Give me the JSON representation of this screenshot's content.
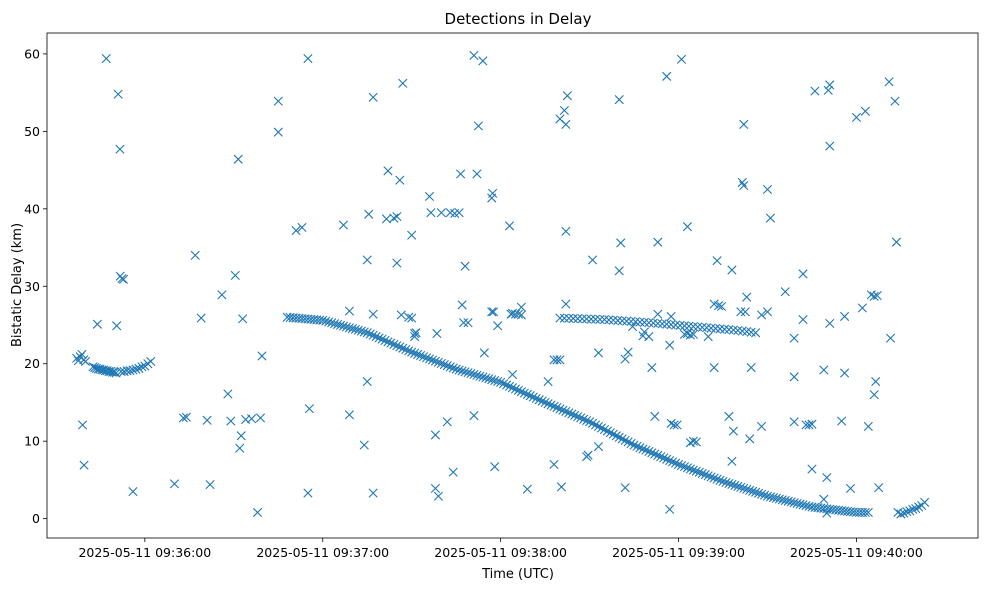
{
  "chart_data": {
    "type": "scatter",
    "title": "Detections in Delay",
    "xlabel": "Time (UTC)",
    "ylabel": "Bistatic Delay (km)",
    "marker": "x",
    "color": "#1f77b4",
    "x_unit": "seconds after 2025-05-11 09:35:00",
    "xlim": [
      27,
      341
    ],
    "ylim": [
      -2.5,
      62.7
    ],
    "xticks": [
      {
        "value": 60,
        "label": "2025-05-11 09:36:00"
      },
      {
        "value": 120,
        "label": "2025-05-11 09:37:00"
      },
      {
        "value": 180,
        "label": "2025-05-11 09:38:00"
      },
      {
        "value": 240,
        "label": "2025-05-11 09:39:00"
      },
      {
        "value": 300,
        "label": "2025-05-11 09:40:00"
      }
    ],
    "yticks": [
      0,
      10,
      20,
      30,
      40,
      50,
      60
    ],
    "track_a_early": {
      "description": "cluster near 19-21 km at start",
      "x": [
        37.0,
        37.6,
        38.2,
        38.8,
        39.4,
        40.0,
        42.5,
        43.1,
        43.7,
        44.3,
        44.9,
        45.5,
        46.1,
        46.7,
        47.3,
        47.9,
        48.5,
        49.1,
        49.7,
        50.3,
        52.0,
        53.0,
        54.0,
        55.0,
        56.0,
        57.0,
        58.0,
        59.0,
        60.0,
        61.0,
        62.0
      ],
      "y": [
        20.7,
        20.4,
        20.9,
        21.2,
        20.5,
        20.3,
        19.6,
        19.5,
        19.4,
        19.3,
        19.3,
        19.2,
        19.2,
        19.1,
        19.1,
        19.0,
        19.0,
        18.9,
        18.9,
        18.8,
        19.0,
        19.0,
        19.1,
        19.1,
        19.2,
        19.3,
        19.4,
        19.6,
        19.7,
        20.0,
        20.3
      ]
    },
    "track_b": {
      "description": "main descending track from ~26 km at 09:36:48 to ~1 km at 09:40:05",
      "x_start": 108,
      "x_step": 1.0,
      "count": 197,
      "y_anchors": [
        [
          108,
          26.0
        ],
        [
          120,
          25.6
        ],
        [
          135,
          24.0
        ],
        [
          150,
          21.5
        ],
        [
          165,
          19.3
        ],
        [
          180,
          17.6
        ],
        [
          195,
          15.0
        ],
        [
          210,
          12.5
        ],
        [
          225,
          9.5
        ],
        [
          240,
          7.0
        ],
        [
          255,
          4.8
        ],
        [
          270,
          2.9
        ],
        [
          285,
          1.5
        ],
        [
          300,
          0.8
        ],
        [
          305,
          0.8
        ]
      ]
    },
    "track_c": {
      "description": "secondary track near 25-26 km",
      "x_start": 200,
      "x_step": 1.5,
      "count": 45,
      "y_anchors": [
        [
          200,
          25.9
        ],
        [
          215,
          25.7
        ],
        [
          230,
          25.3
        ],
        [
          245,
          24.8
        ],
        [
          260,
          24.3
        ],
        [
          266,
          24.0
        ]
      ]
    },
    "track_d_tail": {
      "description": "short cluster at end",
      "x": [
        314,
        315,
        316,
        317,
        318,
        319,
        320,
        321,
        322,
        323
      ],
      "y": [
        0.8,
        0.6,
        0.7,
        0.9,
        1.0,
        1.2,
        1.3,
        1.5,
        1.7,
        2.1
      ]
    },
    "scatter": {
      "description": "isolated detections",
      "points": [
        [
          39,
          12.1
        ],
        [
          39.5,
          6.9
        ],
        [
          47,
          59.4
        ],
        [
          51,
          54.8
        ],
        [
          51.6,
          47.7
        ],
        [
          51.7,
          31.3
        ],
        [
          52.3,
          31.0
        ],
        [
          52.8,
          30.9
        ],
        [
          50.5,
          24.9
        ],
        [
          44,
          25.1
        ],
        [
          56,
          3.5
        ],
        [
          70,
          4.5
        ],
        [
          73,
          13.0
        ],
        [
          74,
          13.1
        ],
        [
          77,
          34.0
        ],
        [
          79,
          25.9
        ],
        [
          81,
          12.7
        ],
        [
          82,
          4.4
        ],
        [
          86,
          28.9
        ],
        [
          88,
          16.1
        ],
        [
          89,
          12.6
        ],
        [
          90.5,
          31.4
        ],
        [
          91.5,
          46.4
        ],
        [
          92,
          9.1
        ],
        [
          92.5,
          10.7
        ],
        [
          93,
          25.8
        ],
        [
          94,
          12.8
        ],
        [
          96,
          12.9
        ],
        [
          98,
          0.8
        ],
        [
          99,
          13.0
        ],
        [
          99.5,
          21.0
        ],
        [
          105,
          53.9
        ],
        [
          105,
          49.9
        ],
        [
          111,
          37.2
        ],
        [
          113,
          37.6
        ],
        [
          115,
          59.4
        ],
        [
          115,
          3.3
        ],
        [
          115.5,
          14.2
        ],
        [
          127,
          37.9
        ],
        [
          129,
          26.8
        ],
        [
          129,
          13.4
        ],
        [
          134,
          9.5
        ],
        [
          135,
          33.4
        ],
        [
          135,
          17.7
        ],
        [
          135.5,
          39.3
        ],
        [
          137,
          54.4
        ],
        [
          137,
          26.4
        ],
        [
          137,
          3.3
        ],
        [
          142,
          44.9
        ],
        [
          141.5,
          38.7
        ],
        [
          144,
          38.8
        ],
        [
          145,
          33.0
        ],
        [
          145,
          39.0
        ],
        [
          146,
          43.7
        ],
        [
          146.5,
          26.3
        ],
        [
          147,
          56.2
        ],
        [
          149,
          26.0
        ],
        [
          150,
          36.6
        ],
        [
          150,
          25.9
        ],
        [
          151,
          23.9
        ],
        [
          151,
          23.5
        ],
        [
          151.5,
          24.0
        ],
        [
          156,
          41.6
        ],
        [
          156.5,
          39.5
        ],
        [
          158,
          10.8
        ],
        [
          158,
          3.9
        ],
        [
          158.5,
          23.9
        ],
        [
          159,
          2.9
        ],
        [
          160,
          39.5
        ],
        [
          162,
          12.5
        ],
        [
          163,
          39.5
        ],
        [
          164,
          6.0
        ],
        [
          164.5,
          39.4
        ],
        [
          166,
          39.5
        ],
        [
          166.5,
          44.5
        ],
        [
          167,
          27.6
        ],
        [
          167.5,
          25.3
        ],
        [
          168,
          32.6
        ],
        [
          169,
          25.3
        ],
        [
          171,
          59.8
        ],
        [
          171,
          13.3
        ],
        [
          172,
          44.5
        ],
        [
          172.5,
          50.7
        ],
        [
          174,
          59.1
        ],
        [
          174.5,
          21.4
        ],
        [
          177,
          26.7
        ],
        [
          177,
          41.4
        ],
        [
          177.3,
          42.0
        ],
        [
          177.6,
          26.7
        ],
        [
          178,
          6.7
        ],
        [
          179,
          24.9
        ],
        [
          183,
          37.8
        ],
        [
          183.5,
          26.4
        ],
        [
          184,
          26.5
        ],
        [
          184,
          18.6
        ],
        [
          185,
          26.4
        ],
        [
          186,
          26.4
        ],
        [
          187,
          27.3
        ],
        [
          187,
          26.3
        ],
        [
          189,
          3.8
        ],
        [
          196,
          17.7
        ],
        [
          198,
          20.5
        ],
        [
          198,
          7.0
        ],
        [
          199,
          20.5
        ],
        [
          200,
          20.5
        ],
        [
          200,
          51.6
        ],
        [
          200.5,
          4.1
        ],
        [
          201.5,
          52.7
        ],
        [
          202,
          37.1
        ],
        [
          202,
          50.9
        ],
        [
          202,
          27.7
        ],
        [
          202.5,
          54.6
        ],
        [
          209,
          8.0
        ],
        [
          209.5,
          8.2
        ],
        [
          211,
          33.4
        ],
        [
          213,
          9.3
        ],
        [
          213,
          21.4
        ],
        [
          220,
          54.1
        ],
        [
          220,
          32.0
        ],
        [
          220.5,
          35.6
        ],
        [
          222,
          4.0
        ],
        [
          222,
          20.6
        ],
        [
          223,
          21.5
        ],
        [
          224.5,
          24.8
        ],
        [
          228,
          23.6
        ],
        [
          228.5,
          24.1
        ],
        [
          230,
          23.5
        ],
        [
          231,
          19.5
        ],
        [
          232,
          13.2
        ],
        [
          233,
          35.7
        ],
        [
          233,
          26.4
        ],
        [
          236,
          57.1
        ],
        [
          237,
          1.2
        ],
        [
          237,
          22.4
        ],
        [
          237.5,
          26.1
        ],
        [
          237.5,
          12.3
        ],
        [
          238.5,
          12.1
        ],
        [
          239.5,
          12.1
        ],
        [
          241,
          59.3
        ],
        [
          242,
          23.8
        ],
        [
          243,
          37.7
        ],
        [
          243,
          23.9
        ],
        [
          244,
          23.7
        ],
        [
          245,
          23.8
        ],
        [
          244,
          9.8
        ],
        [
          245,
          10.0
        ],
        [
          246,
          9.9
        ],
        [
          250,
          23.5
        ],
        [
          252,
          19.5
        ],
        [
          252,
          27.7
        ],
        [
          253,
          33.3
        ],
        [
          253.5,
          27.5
        ],
        [
          254.5,
          27.4
        ],
        [
          257,
          13.2
        ],
        [
          258,
          32.1
        ],
        [
          258,
          7.4
        ],
        [
          258.5,
          11.3
        ],
        [
          261,
          26.7
        ],
        [
          261.5,
          43.4
        ],
        [
          262,
          43.0
        ],
        [
          262,
          50.9
        ],
        [
          262.5,
          26.7
        ],
        [
          263,
          28.6
        ],
        [
          264,
          10.3
        ],
        [
          264.5,
          19.5
        ],
        [
          268,
          26.3
        ],
        [
          268,
          11.9
        ],
        [
          270,
          42.5
        ],
        [
          270,
          26.7
        ],
        [
          271,
          38.8
        ],
        [
          276,
          29.3
        ],
        [
          279,
          18.3
        ],
        [
          279,
          12.5
        ],
        [
          279,
          23.3
        ],
        [
          282,
          31.6
        ],
        [
          282,
          25.7
        ],
        [
          283,
          12.1
        ],
        [
          284,
          12.1
        ],
        [
          285,
          12.2
        ],
        [
          285,
          6.4
        ],
        [
          286,
          55.2
        ],
        [
          289,
          2.5
        ],
        [
          289,
          19.2
        ],
        [
          290,
          5.3
        ],
        [
          290,
          0.7
        ],
        [
          290.5,
          55.3
        ],
        [
          291,
          56.0
        ],
        [
          291,
          48.1
        ],
        [
          291,
          25.2
        ],
        [
          295,
          12.6
        ],
        [
          296,
          18.8
        ],
        [
          296,
          26.1
        ],
        [
          298,
          3.9
        ],
        [
          300,
          51.8
        ],
        [
          302,
          27.2
        ],
        [
          303,
          52.6
        ],
        [
          304,
          11.9
        ],
        [
          305,
          28.9
        ],
        [
          306,
          16.0
        ],
        [
          306,
          28.7
        ],
        [
          306.5,
          17.7
        ],
        [
          307,
          28.8
        ],
        [
          307.5,
          4.0
        ],
        [
          311,
          56.4
        ],
        [
          311.5,
          23.3
        ],
        [
          313,
          53.9
        ],
        [
          313.5,
          35.7
        ]
      ]
    }
  }
}
